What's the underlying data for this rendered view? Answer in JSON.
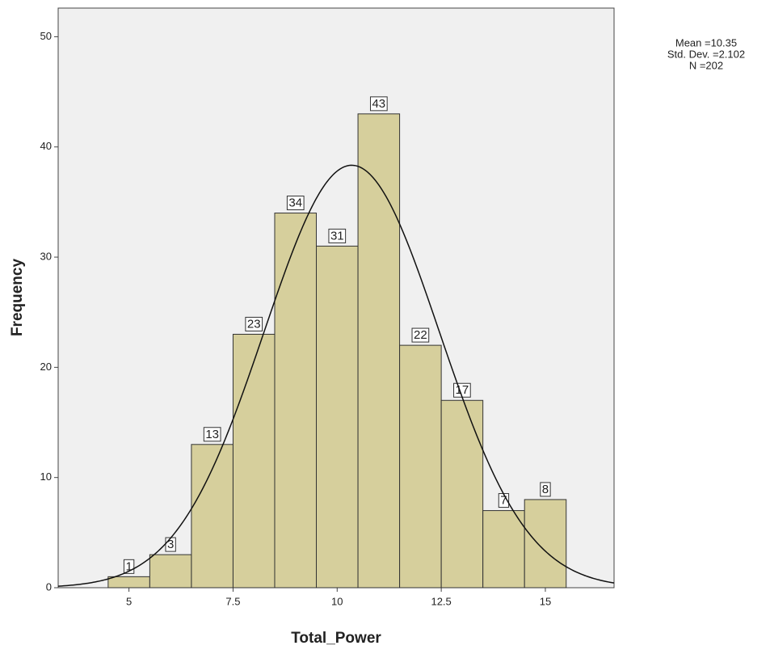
{
  "chart_data": {
    "type": "histogram",
    "x_label": "Total_Power",
    "y_label": "Frequency",
    "bins": [
      4.5,
      5.5,
      6.5,
      7.5,
      8.5,
      9.5,
      10.5,
      11.5,
      12.5,
      13.5,
      14.5,
      15.5
    ],
    "values": [
      1,
      3,
      13,
      23,
      34,
      31,
      43,
      22,
      17,
      7,
      8
    ],
    "color": "#d6cf9c",
    "xlim": [
      3.3,
      16.65
    ],
    "ylim": [
      0,
      52.6
    ],
    "xticks": [
      5,
      7.5,
      10,
      12.5,
      15
    ],
    "yticks": [
      0,
      10,
      20,
      30,
      40,
      50
    ],
    "annotations": [
      "Mean =10.35",
      "Std. Dev. =2.102",
      "N =202"
    ],
    "normal_curve": {
      "mean": 10.35,
      "std": 2.102,
      "n": 202
    }
  }
}
